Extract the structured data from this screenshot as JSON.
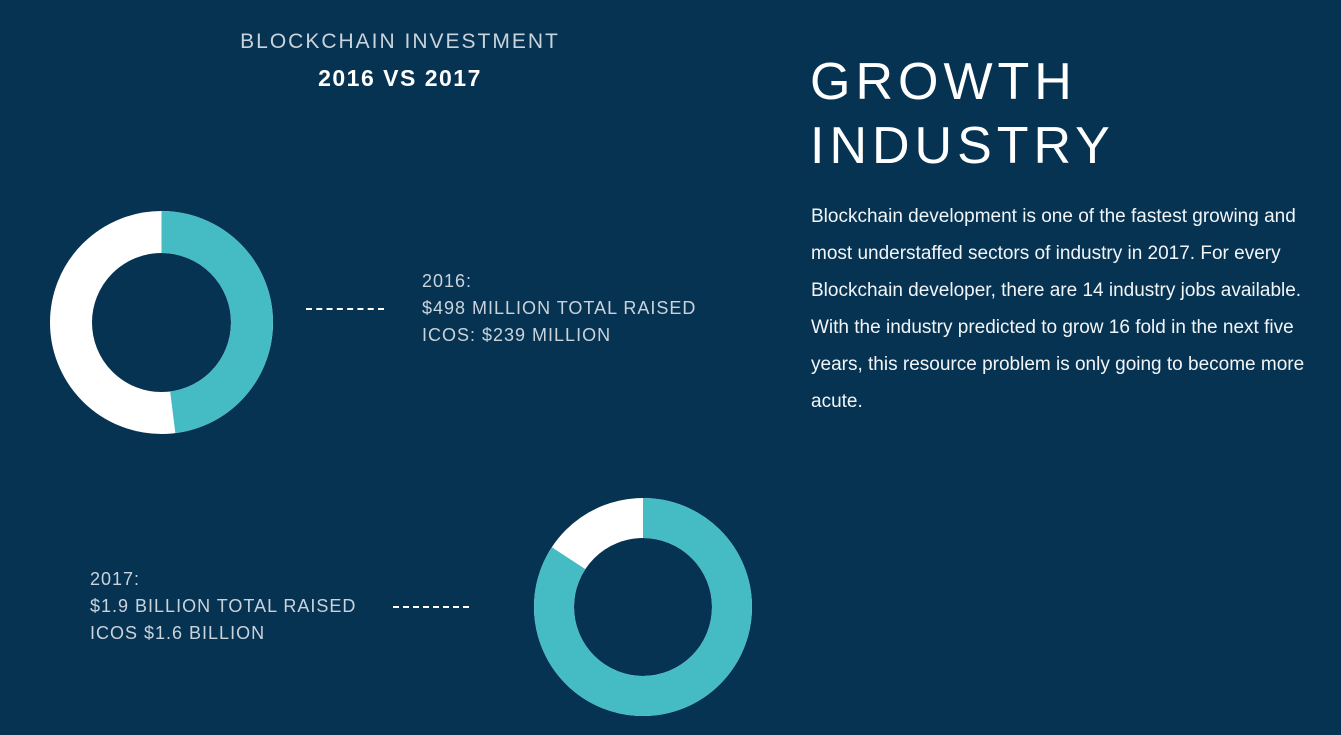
{
  "colors": {
    "background": "#073352",
    "accent": "#45bbc3",
    "remainder": "#ffffff"
  },
  "chart_data": [
    {
      "type": "pie",
      "title": "BLOCKCHAIN INVESTMENT",
      "subtitle": "2016 VS 2017",
      "year_label": "2016:",
      "total_label": "$498 MILLION TOTAL RAISED",
      "ico_label": "ICOS: $239 MILLION",
      "total": 498,
      "ico": 239,
      "unit": "million USD"
    },
    {
      "type": "pie",
      "year_label": "2017:",
      "total_label": "$1.9 BILLION TOTAL RAISED",
      "ico_label": "ICOS $1.6 BILLION",
      "total": 1900,
      "ico": 1600,
      "unit": "million USD"
    }
  ],
  "article": {
    "heading_line1": "GROWTH",
    "heading_line2": "INDUSTRY",
    "body": "Blockchain development is one of the fastest growing and most understaffed sectors of industry in 2017. For every Blockchain developer, there are 14 industry jobs available. With the industry predicted to grow 16 fold in the next five years, this resource problem is only going to become more acute."
  }
}
